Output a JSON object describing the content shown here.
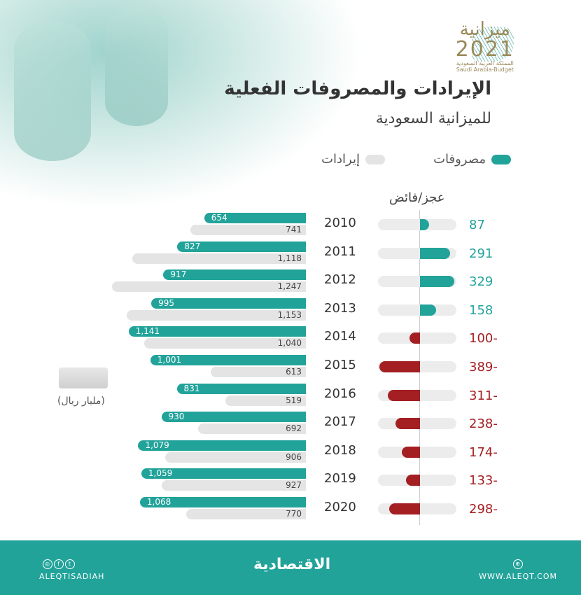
{
  "header": {
    "title": "الإيرادات والمصروفات الفعلية",
    "subtitle": "للميزانية السعودية",
    "logo": {
      "word": "ميزانية",
      "year": "2021",
      "line1": "المملكة العربية السعودية",
      "line2": "Saudi Arabia-Budget"
    }
  },
  "legend": {
    "expenses": "مصروفات",
    "revenues": "إيرادات"
  },
  "deficit_label": "عجز/فائض",
  "unit": "(مليار ريال)",
  "colors": {
    "expenses": "#22a39a",
    "revenues": "#e4e4e4",
    "surplus": "#22a39a",
    "deficit": "#a31f22"
  },
  "chart_data": {
    "type": "bar",
    "categories": [
      "2010",
      "2011",
      "2012",
      "2013",
      "2014",
      "2015",
      "2016",
      "2017",
      "2018",
      "2019",
      "2020"
    ],
    "series": [
      {
        "name": "مصروفات",
        "values": [
          654,
          827,
          917,
          995,
          1141,
          1001,
          831,
          930,
          1079,
          1059,
          1068
        ],
        "labels": [
          "654",
          "827",
          "917",
          "995",
          "1,141",
          "1,001",
          "831",
          "930",
          "1,079",
          "1,059",
          "1,068"
        ]
      },
      {
        "name": "إيرادات",
        "values": [
          741,
          1118,
          1247,
          1153,
          1040,
          613,
          519,
          692,
          906,
          927,
          770
        ],
        "labels": [
          "741",
          "1,118",
          "1,247",
          "1,153",
          "1,040",
          "613",
          "519",
          "692",
          "906",
          "927",
          "770"
        ]
      },
      {
        "name": "عجز/فائض",
        "values": [
          87,
          291,
          329,
          158,
          -100,
          -389,
          -311,
          -238,
          -174,
          -133,
          -298
        ],
        "labels": [
          "87",
          "291",
          "329",
          "158",
          "-100",
          "-389",
          "-311",
          "-238",
          "-174",
          "-133",
          "-298"
        ]
      }
    ]
  },
  "footer": {
    "social": "ALEQTISADIAH",
    "brand": "الاقتصادية",
    "website": "WWW.ALEQT.COM",
    "icons": [
      "instagram-icon",
      "facebook-icon",
      "twitter-icon",
      "globe-icon"
    ]
  }
}
